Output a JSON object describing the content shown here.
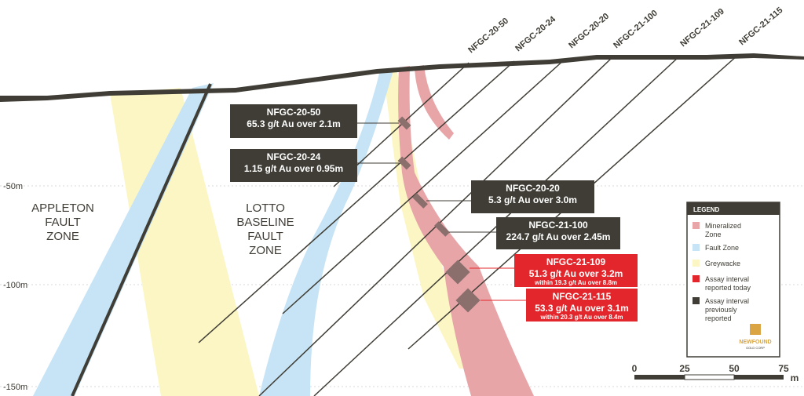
{
  "depth_labels": [
    "-50m",
    "-100m",
    "-150m"
  ],
  "drill_holes": [
    "NFGC-20-50",
    "NFGC-20-24",
    "NFGC-20-20",
    "NFGC-21-100",
    "NFGC-21-109",
    "NFGC-21-115"
  ],
  "zones": [
    {
      "lines": [
        "APPLETON",
        "FAULT",
        "ZONE"
      ]
    },
    {
      "lines": [
        "LOTTO",
        "BASELINE",
        "FAULT",
        "ZONE"
      ]
    }
  ],
  "callouts": [
    {
      "hole": "NFGC-20-50",
      "text": "65.3 g/t Au over 2.1m"
    },
    {
      "hole": "NFGC-20-24",
      "text": "1.15 g/t Au over 0.95m"
    },
    {
      "hole": "NFGC-20-20",
      "text": "5.3 g/t Au over 3.0m"
    },
    {
      "hole": "NFGC-21-100",
      "text": "224.7 g/t Au over 2.45m"
    },
    {
      "hole": "NFGC-21-109",
      "text": "51.3 g/t Au over 3.2m",
      "sub": "within 19.3 g/t Au over 8.8m"
    },
    {
      "hole": "NFGC-21-115",
      "text": "53.3 g/t Au over 3.1m",
      "sub": "within 20.3 g/t Au over 8.4m"
    }
  ],
  "legend": {
    "title": "LEGEND",
    "items": [
      {
        "label": "Mineralized Zone",
        "color": "#e8a5a8"
      },
      {
        "label": "Fault Zone",
        "color": "#c6e4f5"
      },
      {
        "label": "Greywacke",
        "color": "#fbf6c4"
      },
      {
        "label": "Assay interval reported today",
        "color": "#e3262b"
      },
      {
        "label": "Assay interval previously reported",
        "color": "#3f3d35"
      }
    ]
  },
  "scale": {
    "ticks": [
      "0",
      "25",
      "50",
      "75"
    ],
    "unit": "m"
  },
  "logo": {
    "name": "NEWFOUND",
    "sub": "GOLD CORP"
  }
}
